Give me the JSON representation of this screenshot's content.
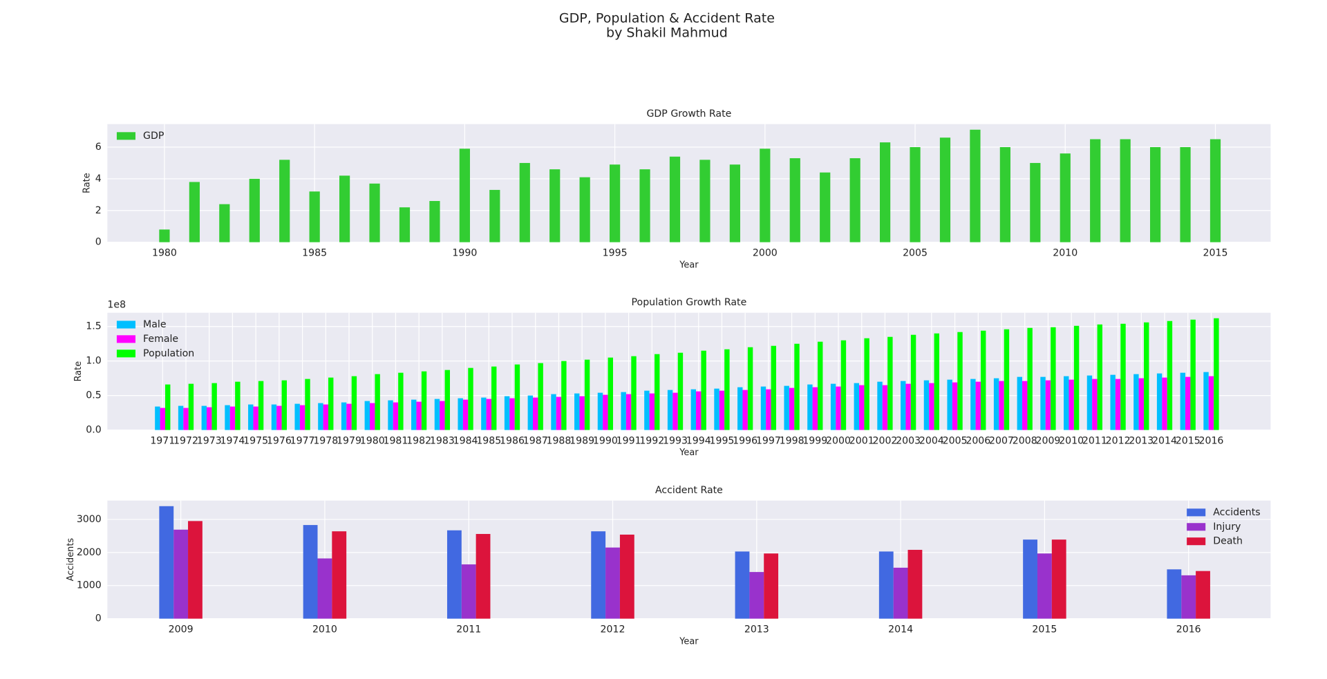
{
  "suptitle": [
    "GDP, Population & Accident Rate",
    "by Shakil Mahmud"
  ],
  "suptitle_color": "#4169e1",
  "chart_data": [
    {
      "type": "bar",
      "title": "GDP Growth Rate",
      "title_color": "#32cd32",
      "x_label": "Year",
      "y_label": "Rate",
      "x": [
        1980,
        1981,
        1982,
        1983,
        1984,
        1985,
        1986,
        1987,
        1988,
        1989,
        1990,
        1991,
        1992,
        1993,
        1994,
        1995,
        1996,
        1997,
        1998,
        1999,
        2000,
        2001,
        2002,
        2003,
        2004,
        2005,
        2006,
        2007,
        2008,
        2009,
        2010,
        2011,
        2012,
        2013,
        2014,
        2015
      ],
      "series": [
        {
          "name": "GDP",
          "color": "#32cd32",
          "values": [
            0.8,
            3.8,
            2.4,
            4.0,
            5.2,
            3.2,
            4.2,
            3.7,
            2.2,
            2.6,
            5.9,
            3.3,
            5.0,
            4.6,
            4.1,
            4.9,
            4.6,
            5.4,
            5.2,
            4.9,
            5.9,
            5.3,
            4.4,
            5.3,
            6.3,
            6.0,
            6.6,
            7.1,
            6.0,
            5.0,
            5.6,
            6.5,
            6.5,
            6.0,
            6.0,
            6.5
          ]
        }
      ],
      "xlim": [
        1978.1,
        2016.84
      ],
      "xticks": [
        1980,
        1985,
        1990,
        1995,
        2000,
        2005,
        2010,
        2015
      ],
      "ylim": [
        0,
        7.455
      ],
      "yticks": [
        0,
        2,
        4,
        6
      ],
      "grid": true,
      "legend": "upper-left"
    },
    {
      "type": "bar",
      "title": "Population Growth Rate",
      "title_color": "#ff00ff",
      "x_label": "Year",
      "y_label": "Rate",
      "y_offset_label": "1e8",
      "categories": [
        "1971",
        "1972",
        "1973",
        "1974",
        "1975",
        "1976",
        "1977",
        "1978",
        "1979",
        "1980",
        "1981",
        "1982",
        "1983",
        "1984",
        "1985",
        "1986",
        "1987",
        "1988",
        "1989",
        "1990",
        "1991",
        "1992",
        "1993",
        "1994",
        "1995",
        "1996",
        "1997",
        "1998",
        "1999",
        "2000",
        "2001",
        "2002",
        "2003",
        "2004",
        "2005",
        "2006",
        "2007",
        "2008",
        "2009",
        "2010",
        "2011",
        "2012",
        "2013",
        "2014",
        "2015",
        "2016"
      ],
      "series": [
        {
          "name": "Male",
          "color": "#00bfff",
          "values": [
            34000000,
            35000000,
            35000000,
            36000000,
            37000000,
            37000000,
            38000000,
            39000000,
            40000000,
            42000000,
            43000000,
            44000000,
            45000000,
            46000000,
            47000000,
            49000000,
            50000000,
            52000000,
            53000000,
            54000000,
            55000000,
            57000000,
            58000000,
            59000000,
            60000000,
            62000000,
            63000000,
            64000000,
            66000000,
            67000000,
            68000000,
            70000000,
            71000000,
            72000000,
            73000000,
            74000000,
            75000000,
            77000000,
            77000000,
            78000000,
            79000000,
            80000000,
            81000000,
            82000000,
            83000000,
            84000000
          ]
        },
        {
          "name": "Female",
          "color": "#ff00ff",
          "values": [
            32000000,
            32000000,
            33000000,
            34000000,
            34000000,
            35000000,
            36000000,
            37000000,
            38000000,
            39000000,
            40000000,
            41000000,
            42000000,
            44000000,
            45000000,
            46000000,
            47000000,
            48000000,
            49000000,
            51000000,
            52000000,
            53000000,
            54000000,
            56000000,
            57000000,
            58000000,
            59000000,
            61000000,
            62000000,
            63000000,
            65000000,
            65000000,
            67000000,
            68000000,
            69000000,
            70000000,
            71000000,
            71000000,
            72000000,
            73000000,
            74000000,
            74000000,
            75000000,
            76000000,
            77000000,
            78000000
          ]
        },
        {
          "name": "Population",
          "color": "#00ff00",
          "values": [
            66000000,
            67000000,
            68000000,
            70000000,
            71000000,
            72000000,
            74000000,
            76000000,
            78000000,
            81000000,
            83000000,
            85000000,
            87000000,
            90000000,
            92000000,
            95000000,
            97000000,
            100000000,
            102000000,
            105000000,
            107000000,
            110000000,
            112000000,
            115000000,
            117000000,
            120000000,
            122000000,
            125000000,
            128000000,
            130000000,
            133000000,
            135000000,
            138000000,
            140000000,
            142000000,
            144000000,
            146000000,
            148000000,
            149000000,
            151000000,
            153000000,
            154000000,
            156000000,
            158000000,
            160000000,
            162000000
          ]
        }
      ],
      "ylim": [
        0,
        170000000
      ],
      "yticks": [
        {
          "value": 0,
          "label": "0.0"
        },
        {
          "value": 50000000,
          "label": "0.5"
        },
        {
          "value": 100000000,
          "label": "1.0"
        },
        {
          "value": 150000000,
          "label": "1.5"
        }
      ],
      "grid": true,
      "legend": "upper-left"
    },
    {
      "type": "bar",
      "title": "Accident Rate",
      "title_color": "#4169e1",
      "x_label": "Year",
      "y_label": "Accidents",
      "categories": [
        "2009",
        "2010",
        "2011",
        "2012",
        "2013",
        "2014",
        "2015",
        "2016"
      ],
      "series": [
        {
          "name": "Accidents",
          "color": "#4169e1",
          "values": [
            3400,
            2830,
            2670,
            2640,
            2030,
            2030,
            2390,
            1490
          ]
        },
        {
          "name": "Injury",
          "color": "#9932cc",
          "values": [
            2690,
            1820,
            1640,
            2150,
            1410,
            1540,
            1970,
            1310
          ]
        },
        {
          "name": "Death",
          "color": "#dc143c",
          "values": [
            2950,
            2640,
            2560,
            2540,
            1970,
            2080,
            2390,
            1440
          ]
        }
      ],
      "ylim": [
        0,
        3570
      ],
      "yticks": [
        0,
        1000,
        2000,
        3000
      ],
      "grid": true,
      "legend": "upper-right"
    }
  ]
}
